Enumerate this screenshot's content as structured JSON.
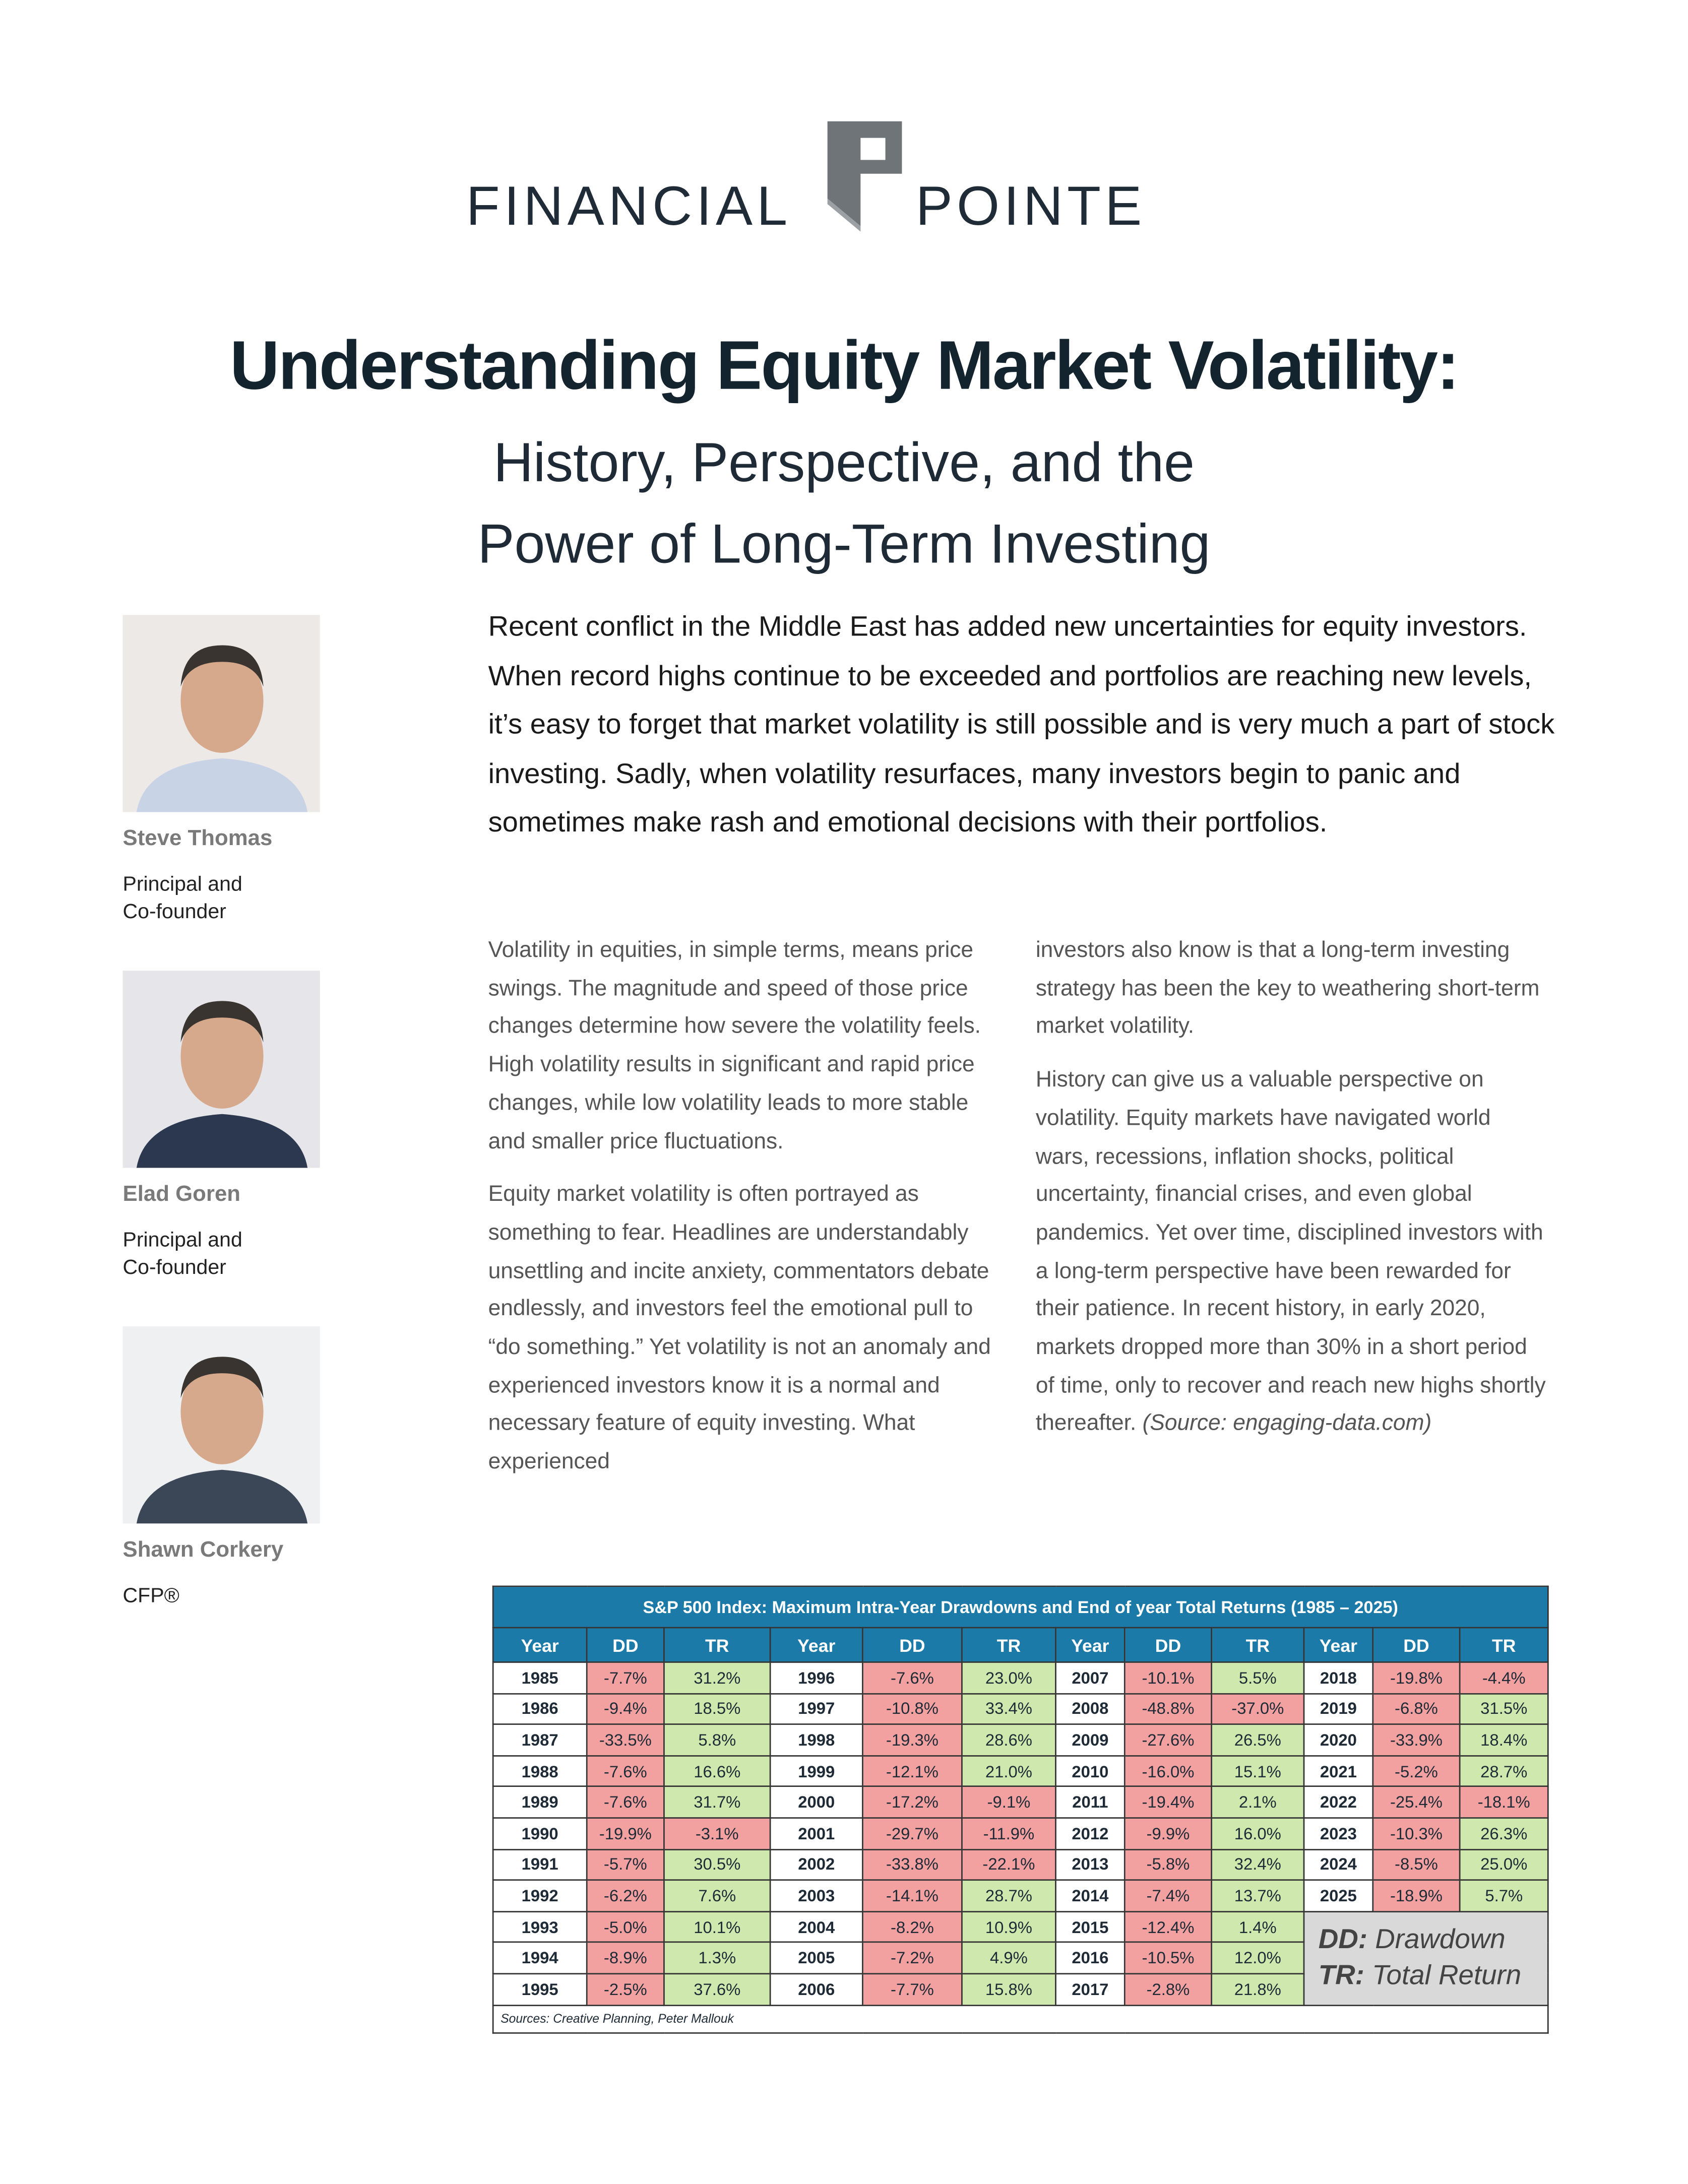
{
  "header": {
    "logo_left": "FINANCIAL",
    "logo_right": "POINTE"
  },
  "title": "Understanding Equity Market Volatility:",
  "subtitle": [
    "History, Perspective, and the",
    "Power of Long-Term Investing"
  ],
  "people": [
    {
      "name": "Steve Thomas",
      "role": [
        "Principal and",
        "Co-founder"
      ]
    },
    {
      "name": "Elad Goren",
      "role": [
        "Principal and",
        "Co-founder"
      ]
    },
    {
      "name": "Shawn Corkery",
      "role": [
        "CFP®"
      ]
    }
  ],
  "intro": "Recent conflict in the Middle East has added new uncertainties for equity investors. When record highs continue to be exceeded and portfolios are reaching new levels, it’s easy to forget that market volatility is still possible and is very much a part of stock investing. Sadly, when volatility resurfaces, many investors begin to panic and sometimes make rash and emotional decisions with their portfolios.",
  "body_left": [
    "Volatility in equities, in simple terms, means price swings. The magnitude and speed of those price changes determine how severe the volatility feels. High volatility results in significant and rapid price changes, while low volatility leads to more stable and smaller price fluctuations.",
    "Equity market volatility is often portrayed as something to fear. Headlines are understandably unsettling and incite anxiety, commentators debate endlessly, and investors feel the emotional pull to “do something.” Yet volatility is not an anomaly and experienced investors know it is a normal and necessary feature of equity investing. What experienced"
  ],
  "body_right": [
    "investors also know is that a long-term investing strategy has been the key to weathering short-term market volatility.",
    "History can give us a valuable perspective on volatility. Equity markets have navigated world wars, recessions, inflation shocks, political uncertainty, financial crises, and even global pandemics. Yet over time, disciplined investors with a long-term perspective have been rewarded for their patience. In recent history, in early 2020, markets dropped more than 30% in a short period of time, only to recover and reach new highs shortly thereafter."
  ],
  "source_note": "(Source: engaging-data.com)",
  "table": {
    "title": "S&P 500 Index: Maximum Intra-Year Drawdowns and End of year Total Returns (1985 – 2025)",
    "headers": [
      "Year",
      "DD",
      "TR",
      "Year",
      "DD",
      "TR",
      "Year",
      "DD",
      "TR",
      "Year",
      "DD",
      "TR"
    ],
    "rows": [
      [
        "1985",
        "-7.7%",
        "31.2%",
        "1996",
        "-7.6%",
        "23.0%",
        "2007",
        "-10.1%",
        "5.5%",
        "2018",
        "-19.8%",
        "-4.4%"
      ],
      [
        "1986",
        "-9.4%",
        "18.5%",
        "1997",
        "-10.8%",
        "33.4%",
        "2008",
        "-48.8%",
        "-37.0%",
        "2019",
        "-6.8%",
        "31.5%"
      ],
      [
        "1987",
        "-33.5%",
        "5.8%",
        "1998",
        "-19.3%",
        "28.6%",
        "2009",
        "-27.6%",
        "26.5%",
        "2020",
        "-33.9%",
        "18.4%"
      ],
      [
        "1988",
        "-7.6%",
        "16.6%",
        "1999",
        "-12.1%",
        "21.0%",
        "2010",
        "-16.0%",
        "15.1%",
        "2021",
        "-5.2%",
        "28.7%"
      ],
      [
        "1989",
        "-7.6%",
        "31.7%",
        "2000",
        "-17.2%",
        "-9.1%",
        "2011",
        "-19.4%",
        "2.1%",
        "2022",
        "-25.4%",
        "-18.1%"
      ],
      [
        "1990",
        "-19.9%",
        "-3.1%",
        "2001",
        "-29.7%",
        "-11.9%",
        "2012",
        "-9.9%",
        "16.0%",
        "2023",
        "-10.3%",
        "26.3%"
      ],
      [
        "1991",
        "-5.7%",
        "30.5%",
        "2002",
        "-33.8%",
        "-22.1%",
        "2013",
        "-5.8%",
        "32.4%",
        "2024",
        "-8.5%",
        "25.0%"
      ],
      [
        "1992",
        "-6.2%",
        "7.6%",
        "2003",
        "-14.1%",
        "28.7%",
        "2014",
        "-7.4%",
        "13.7%",
        "2025",
        "-18.9%",
        "5.7%"
      ],
      [
        "1993",
        "-5.0%",
        "10.1%",
        "2004",
        "-8.2%",
        "10.9%",
        "2015",
        "-12.4%",
        "1.4%"
      ],
      [
        "1994",
        "-8.9%",
        "1.3%",
        "2005",
        "-7.2%",
        "4.9%",
        "2016",
        "-10.5%",
        "12.0%"
      ],
      [
        "1995",
        "-2.5%",
        "37.6%",
        "2006",
        "-7.7%",
        "15.8%",
        "2017",
        "-2.8%",
        "21.8%"
      ]
    ],
    "legend": [
      {
        "key": "DD:",
        "label": "Drawdown"
      },
      {
        "key": "TR:",
        "label": "Total Return"
      }
    ],
    "source": "Sources: Creative Planning, Peter Mallouk"
  }
}
